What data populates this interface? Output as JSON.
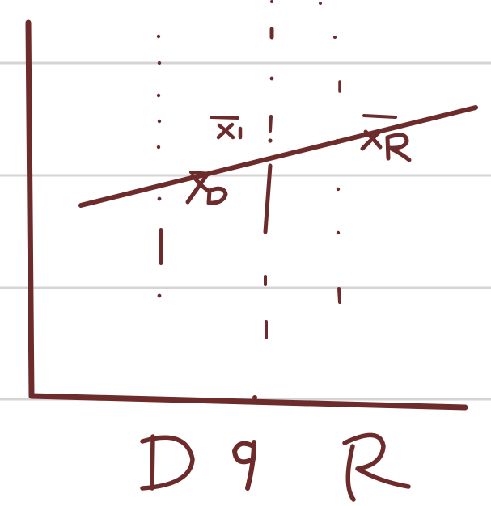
{
  "colors": {
    "ink": "#6e2b2b",
    "rule_line": "#d4d4d4",
    "paper": "#ffffff"
  },
  "points": {
    "xbar_D": "x̄D",
    "xbar_1": "x̄1",
    "xbar_R": "x̄R"
  },
  "axis_labels": {
    "left": "D",
    "middle": "q",
    "right": "R"
  }
}
